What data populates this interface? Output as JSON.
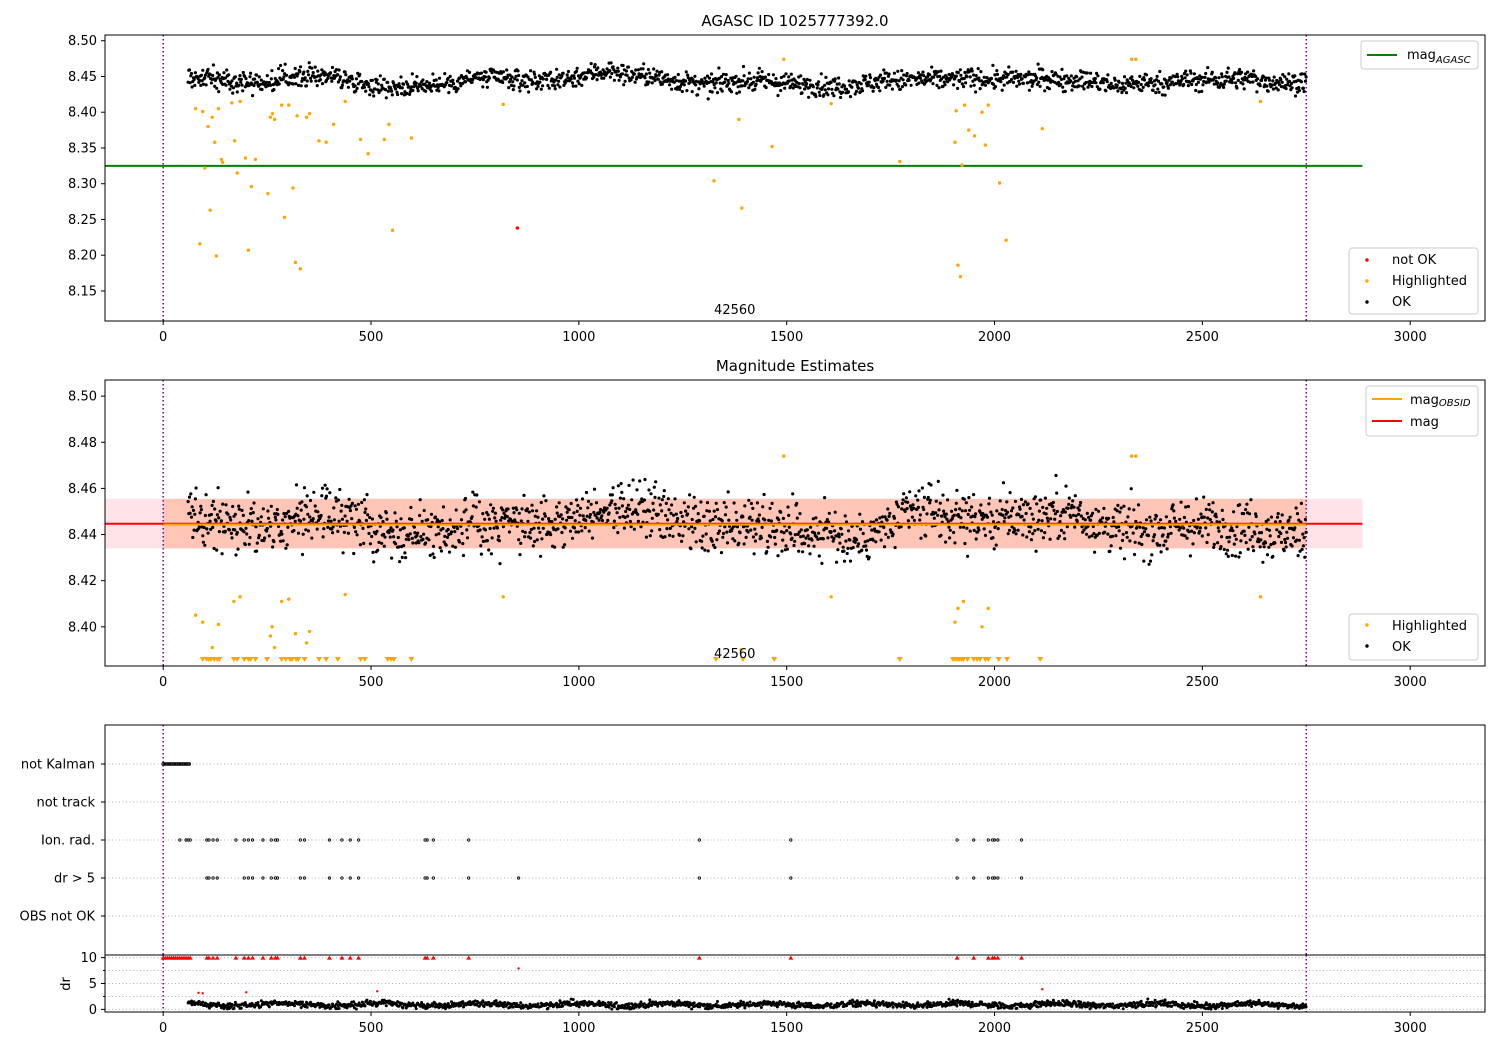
{
  "chart_data": [
    {
      "type": "scatter",
      "title": "AGASC ID 1025777392.0",
      "xlim": [
        -140,
        3180
      ],
      "ylim": [
        8.108,
        8.508
      ],
      "xticks": [
        0,
        500,
        1000,
        1500,
        2000,
        2500,
        3000
      ],
      "yticks": [
        8.15,
        8.2,
        8.25,
        8.3,
        8.35,
        8.4,
        8.45,
        8.5
      ],
      "ytick_labels": [
        "8.15",
        "8.20",
        "8.25",
        "8.30",
        "8.35",
        "8.40",
        "8.45",
        "8.50"
      ],
      "vlines": [
        0,
        2750
      ],
      "reference_lines": [
        {
          "name": "mag_AGASC",
          "y": 8.325,
          "x": [
            -140,
            2885
          ],
          "color": "#008000"
        }
      ],
      "annotation": {
        "text": "42560",
        "x": 1375,
        "y": 8.118
      },
      "series": [
        {
          "name": "OK",
          "color": "#000000",
          "x_range": [
            60,
            2750
          ],
          "y_center": 8.445,
          "y_spread": 0.013
        },
        {
          "name": "Highlighted",
          "color": "#ffa500",
          "points": [
            [
              78,
              8.405
            ],
            [
              88,
              8.216
            ],
            [
              95,
              8.401
            ],
            [
              100,
              8.322
            ],
            [
              108,
              8.38
            ],
            [
              113,
              8.263
            ],
            [
              118,
              8.393
            ],
            [
              124,
              8.358
            ],
            [
              128,
              8.199
            ],
            [
              133,
              8.405
            ],
            [
              140,
              8.334
            ],
            [
              143,
              8.33
            ],
            [
              165,
              8.413
            ],
            [
              172,
              8.36
            ],
            [
              178,
              8.315
            ],
            [
              185,
              8.415
            ],
            [
              198,
              8.336
            ],
            [
              205,
              8.207
            ],
            [
              212,
              8.296
            ],
            [
              222,
              8.334
            ],
            [
              252,
              8.286
            ],
            [
              258,
              8.393
            ],
            [
              263,
              8.398
            ],
            [
              268,
              8.39
            ],
            [
              285,
              8.41
            ],
            [
              292,
              8.253
            ],
            [
              302,
              8.41
            ],
            [
              312,
              8.294
            ],
            [
              318,
              8.19
            ],
            [
              322,
              8.395
            ],
            [
              330,
              8.181
            ],
            [
              345,
              8.393
            ],
            [
              352,
              8.398
            ],
            [
              375,
              8.36
            ],
            [
              392,
              8.358
            ],
            [
              410,
              8.383
            ],
            [
              438,
              8.415
            ],
            [
              475,
              8.362
            ],
            [
              493,
              8.342
            ],
            [
              532,
              8.362
            ],
            [
              543,
              8.383
            ],
            [
              552,
              8.235
            ],
            [
              597,
              8.364
            ],
            [
              818,
              8.411
            ],
            [
              1325,
              8.304
            ],
            [
              1385,
              8.39
            ],
            [
              1392,
              8.266
            ],
            [
              1465,
              8.352
            ],
            [
              1493,
              8.474
            ],
            [
              1607,
              8.412
            ],
            [
              1772,
              8.331
            ],
            [
              1905,
              8.358
            ],
            [
              1908,
              8.402
            ],
            [
              1912,
              8.186
            ],
            [
              1918,
              8.17
            ],
            [
              1922,
              8.326
            ],
            [
              1928,
              8.41
            ],
            [
              1938,
              8.375
            ],
            [
              1952,
              8.367
            ],
            [
              1970,
              8.4
            ],
            [
              1978,
              8.354
            ],
            [
              1985,
              8.41
            ],
            [
              2012,
              8.301
            ],
            [
              2028,
              8.221
            ],
            [
              2115,
              8.377
            ],
            [
              2330,
              8.474
            ],
            [
              2340,
              8.474
            ],
            [
              2640,
              8.415
            ]
          ]
        },
        {
          "name": "not OK",
          "color": "#ff0000",
          "points": [
            [
              852,
              8.238
            ]
          ]
        }
      ],
      "legend_upper": [
        "mag_AGASC"
      ],
      "legend_lower": [
        "not OK",
        "Highlighted",
        "OK"
      ],
      "legend_placement": [
        "upper-right",
        "lower-right"
      ]
    },
    {
      "type": "scatter",
      "title": "Magnitude Estimates",
      "xlim": [
        -140,
        3180
      ],
      "ylim": [
        8.383,
        8.507
      ],
      "xticks": [
        0,
        500,
        1000,
        1500,
        2000,
        2500,
        3000
      ],
      "yticks": [
        8.4,
        8.42,
        8.44,
        8.46,
        8.48,
        8.5
      ],
      "ytick_labels": [
        "8.40",
        "8.42",
        "8.44",
        "8.46",
        "8.48",
        "8.50"
      ],
      "vlines": [
        0,
        2750
      ],
      "bands": [
        {
          "name": "mag range",
          "y": [
            8.434,
            8.4555
          ],
          "x": [
            -140,
            2885
          ],
          "color": "#ffc0cb"
        },
        {
          "name": "mag_OBSID range",
          "y": [
            8.434,
            8.4555
          ],
          "x": [
            0,
            2750
          ],
          "color": "#ffa07a"
        }
      ],
      "reference_lines": [
        {
          "name": "mag",
          "y": 8.4447,
          "x": [
            -140,
            2885
          ],
          "color": "#ff0000"
        },
        {
          "name": "mag_OBSID",
          "y": 8.4443,
          "x": [
            0,
            2750
          ],
          "color": "#ffa500"
        }
      ],
      "annotation": {
        "text": "42560",
        "x": 1375,
        "y": 8.3865
      },
      "lower_limit_x": [
        95,
        105,
        110,
        115,
        123,
        130,
        135,
        170,
        178,
        195,
        205,
        210,
        222,
        250,
        285,
        295,
        305,
        310,
        320,
        325,
        340,
        375,
        392,
        420,
        475,
        485,
        540,
        548,
        555,
        597,
        1330,
        1395,
        1470,
        1772,
        1900,
        1905,
        1910,
        1915,
        1920,
        1925,
        1935,
        1950,
        1958,
        1965,
        1978,
        1985,
        2010,
        2030,
        2110
      ],
      "series": [
        {
          "name": "OK",
          "color": "#000000",
          "x_range": [
            60,
            2750
          ],
          "y_center": 8.4445,
          "y_spread": 0.0105
        },
        {
          "name": "Highlighted",
          "color": "#ffa500",
          "points": [
            [
              78,
              8.405
            ],
            [
              95,
              8.402
            ],
            [
              118,
              8.391
            ],
            [
              133,
              8.401
            ],
            [
              170,
              8.411
            ],
            [
              185,
              8.413
            ],
            [
              258,
              8.396
            ],
            [
              262,
              8.4
            ],
            [
              268,
              8.391
            ],
            [
              285,
              8.411
            ],
            [
              302,
              8.412
            ],
            [
              318,
              8.397
            ],
            [
              345,
              8.393
            ],
            [
              352,
              8.398
            ],
            [
              438,
              8.414
            ],
            [
              818,
              8.413
            ],
            [
              1390,
              8.39
            ],
            [
              1493,
              8.474
            ],
            [
              1607,
              8.413
            ],
            [
              1905,
              8.402
            ],
            [
              1912,
              8.408
            ],
            [
              1925,
              8.411
            ],
            [
              1970,
              8.4
            ],
            [
              1985,
              8.408
            ],
            [
              2330,
              8.474
            ],
            [
              2340,
              8.474
            ],
            [
              2640,
              8.413
            ]
          ]
        }
      ],
      "legend_upper": [
        "mag_OBSID",
        "mag"
      ],
      "legend_lower": [
        "Highlighted",
        "OK"
      ],
      "legend_placement": [
        "upper-right",
        "lower-right"
      ]
    },
    {
      "type": "scatter",
      "title": "",
      "xlim": [
        -140,
        3180
      ],
      "categories": [
        "not Kalman",
        "not track",
        "Ion. rad.",
        "dr > 5",
        "OBS not OK"
      ],
      "vlines": [
        0,
        2750
      ],
      "flag_points": {
        "not Kalman_range": [
          0,
          65
        ],
        "Ion. rad.": [
          40,
          55,
          60,
          65,
          105,
          110,
          120,
          130,
          175,
          195,
          205,
          215,
          240,
          260,
          270,
          275,
          330,
          340,
          400,
          430,
          450,
          470,
          630,
          635,
          650,
          735,
          1290,
          1510,
          1910,
          1950,
          1985,
          1995,
          2000,
          2008,
          2065
        ],
        "dr > 5": [
          105,
          110,
          120,
          130,
          195,
          205,
          215,
          240,
          260,
          270,
          275,
          330,
          340,
          400,
          430,
          450,
          470,
          630,
          635,
          650,
          735,
          855,
          1290,
          1510,
          1910,
          1950,
          1985,
          1995,
          2000,
          2008,
          2065
        ]
      }
    },
    {
      "type": "scatter",
      "title": "",
      "ylabel": "dr",
      "xlim": [
        -140,
        3180
      ],
      "ylim": [
        -0.5,
        10.5
      ],
      "yticks": [
        0,
        5,
        10
      ],
      "ytick_labels": [
        "0",
        "5",
        "10"
      ],
      "xticks": [
        0,
        500,
        1000,
        1500,
        2000,
        2500,
        3000
      ],
      "vlines": [
        0,
        2750
      ],
      "clipped_x": [
        0,
        5,
        10,
        15,
        20,
        25,
        30,
        35,
        40,
        45,
        50,
        55,
        60,
        65,
        105,
        110,
        120,
        130,
        175,
        195,
        205,
        215,
        240,
        260,
        270,
        275,
        330,
        340,
        400,
        430,
        450,
        470,
        630,
        635,
        650,
        735,
        1290,
        1510,
        1910,
        1950,
        1985,
        1995,
        2000,
        2008,
        2065
      ],
      "red_points": [
        [
          85,
          3.2
        ],
        [
          95,
          3.1
        ],
        [
          200,
          3.3
        ],
        [
          515,
          3.5
        ],
        [
          855,
          7.9
        ],
        [
          2115,
          3.9
        ]
      ],
      "series": [
        {
          "name": "dr",
          "color": "#000000",
          "x_range": [
            60,
            2750
          ],
          "y_center": 0.9,
          "y_spread": 0.5
        }
      ]
    }
  ],
  "legend_labels": {
    "mag_agasc": "mag",
    "mag_agasc_sub": "AGASC",
    "not_ok": "not OK",
    "highlighted": "Highlighted",
    "ok": "OK",
    "mag_obsid": "mag",
    "mag_obsid_sub": "OBSID",
    "mag": "mag"
  },
  "colors": {
    "ok": "#000000",
    "highlighted": "#ffa500",
    "not_ok": "#ff0000",
    "agasc_line": "#008000",
    "vline": "#800080",
    "grid": "#b0b0b0"
  }
}
